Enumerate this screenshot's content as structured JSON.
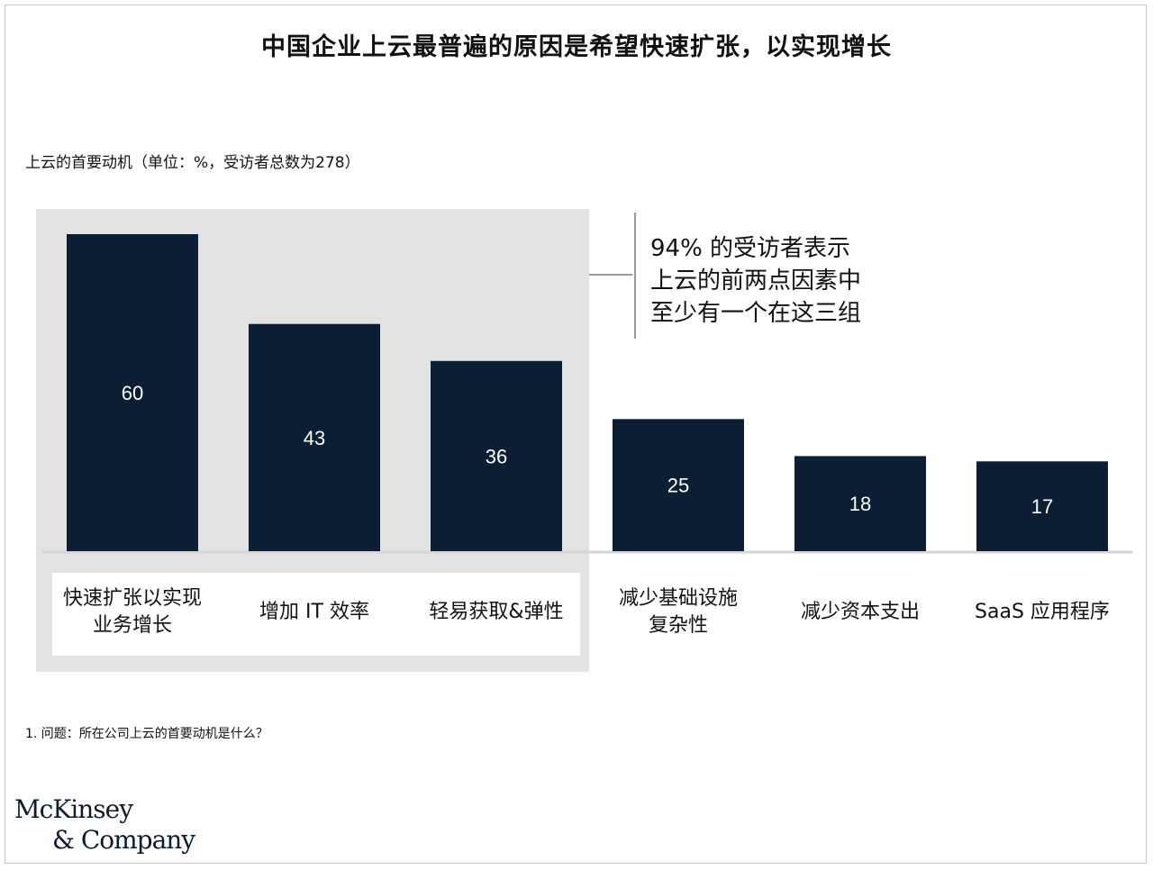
{
  "title": "中国企业上云最普遍的原因是希望快速扩张，以实现增长",
  "subtitle": "上云的首要动机（单位：%，受访者总数为278）",
  "callout": "94% 的受访者表示\n上云的前两点因素中\n至少有一个在这三组",
  "footnote": "1. 问题：所在公司上云的首要动机是什么？",
  "logo": {
    "line1": "McKinsey",
    "line2": "& Company"
  },
  "colors": {
    "bar": "#0c1e33",
    "highlight": "#e3e3e3",
    "bar_label": "#ffffff",
    "axis": "#d6d6d6"
  },
  "chart_data": {
    "type": "bar",
    "categories": [
      "快速扩张以实现\n业务增长",
      "增加 IT 效率",
      "轻易获取&弹性",
      "减少基础设施\n复杂性",
      "减少资本支出",
      "SaaS 应用程序"
    ],
    "values": [
      60,
      43,
      36,
      25,
      18,
      17
    ],
    "ylim": [
      0,
      60
    ],
    "grid": false,
    "highlighted_categories": [
      0,
      1,
      2
    ],
    "data_labels": [
      "60",
      "43",
      "36",
      "25",
      "18",
      "17"
    ]
  }
}
